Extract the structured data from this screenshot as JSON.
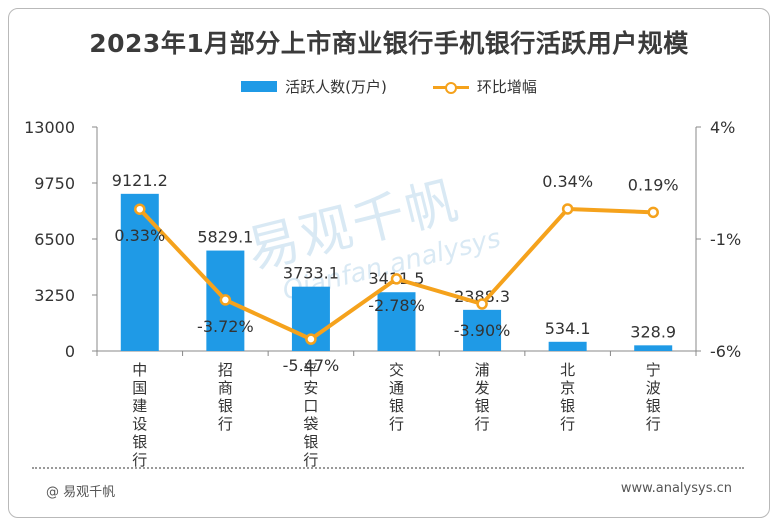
{
  "title": "2023年1月部分上市商业银行手机银行活跃用户规模",
  "legend": {
    "bar_label": "活跃人数(万户)",
    "line_label": "环比增幅"
  },
  "watermark": {
    "main": "易观千帆",
    "sub": "Qianfan.analysys"
  },
  "footer": {
    "source": "@ 易观千帆",
    "url": "www.analysys.cn"
  },
  "colors": {
    "bar": "#1f9ae6",
    "line": "#f5a21c",
    "text": "#333333",
    "axis": "#888888"
  },
  "chart_data": {
    "type": "bar",
    "categories": [
      "中国建设银行",
      "招商银行",
      "平安口袋银行",
      "交通银行",
      "浦发银行",
      "北京银行",
      "宁波银行"
    ],
    "series": [
      {
        "name": "活跃人数(万户)",
        "type": "bar",
        "axis": "left",
        "values": [
          9121.2,
          5829.1,
          3733.1,
          3411.5,
          2388.3,
          534.1,
          328.9
        ],
        "labels": [
          "9121.2",
          "5829.1",
          "3733.1",
          "3411.5",
          "2388.3",
          "534.1",
          "328.9"
        ]
      },
      {
        "name": "环比增幅",
        "type": "line",
        "axis": "right",
        "values": [
          0.33,
          -3.72,
          -5.47,
          -2.78,
          -3.9,
          0.34,
          0.19
        ],
        "labels": [
          "0.33%",
          "-3.72%",
          "-5.47%",
          "-2.78%",
          "-3.90%",
          "0.34%",
          "0.19%"
        ]
      }
    ],
    "y_left": {
      "ylim": [
        0,
        13000
      ],
      "ticks": [
        0,
        3250,
        6500,
        9750,
        13000
      ],
      "tick_labels": [
        "0",
        "3250",
        "6500",
        "9750",
        "13000"
      ]
    },
    "y_right": {
      "ylim": [
        -6,
        4
      ],
      "ticks": [
        -6,
        -1,
        4
      ],
      "tick_labels": [
        "-6%",
        "-1%",
        "4%"
      ]
    },
    "grid": false,
    "legend_position": "top-center"
  }
}
